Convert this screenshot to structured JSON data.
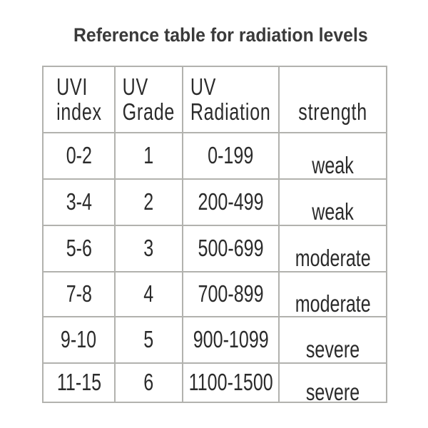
{
  "title": "Reference table for radiation levels",
  "table": {
    "headers": {
      "uvi": "UVI\nindex",
      "grade": "UV\nGrade",
      "radiation": "UV\nRadiation",
      "strength": "strength"
    },
    "rows": [
      {
        "uvi": "0-2",
        "grade": "1",
        "radiation": "0-199",
        "strength": "weak"
      },
      {
        "uvi": "3-4",
        "grade": "2",
        "radiation": "200-499",
        "strength": "weak"
      },
      {
        "uvi": "5-6",
        "grade": "3",
        "radiation": "500-699",
        "strength": "moderate"
      },
      {
        "uvi": "7-8",
        "grade": "4",
        "radiation": "700-899",
        "strength": "moderate"
      },
      {
        "uvi": "9-10",
        "grade": "5",
        "radiation": "900-1099",
        "strength": "severe"
      },
      {
        "uvi": "11-15",
        "grade": "6",
        "radiation": "1100-1500",
        "strength": "severe"
      }
    ]
  },
  "colors": {
    "background": "#ffffff",
    "text": "#2b2b2b",
    "title_text": "#3a3a3a",
    "grid_line": "#b2b2ae"
  }
}
